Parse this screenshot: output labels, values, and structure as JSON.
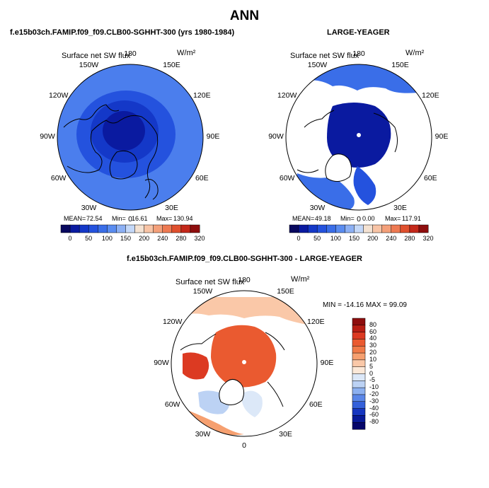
{
  "title": "ANN",
  "left_panel": {
    "subtitle": "f.e15b03ch.FAMIP.f09_f09.CLB00-SGHHT-300 (yrs 1980-1984)",
    "plot_title": "Surface net SW flux",
    "units": "W/m²",
    "mean_label": "MEAN=",
    "mean": "72.54",
    "min_label": "Min=",
    "min": "16.61",
    "max_label": "Max=",
    "max": "130.94"
  },
  "right_panel": {
    "subtitle": "LARGE-YEAGER",
    "plot_title": "Surface net SW flux",
    "units": "W/m²",
    "mean_label": "MEAN=",
    "mean": "49.18",
    "min_label": "Min=",
    "min": "0.00",
    "max_label": "Max=",
    "max": "117.91"
  },
  "diff_panel": {
    "subtitle": "f.e15b03ch.FAMIP.f09_f09.CLB00-SGHHT-300 - LARGE-YEAGER",
    "plot_title": "Surface net SW flux",
    "units": "W/m²",
    "minmax_text": "MIN = -14.16 MAX =  99.09"
  },
  "lon_labels": [
    "180",
    "150E",
    "120E",
    "90E",
    "60E",
    "30E",
    "0",
    "30W",
    "60W",
    "90W",
    "120W",
    "150W"
  ],
  "colorbar_ticks": [
    "0",
    "50",
    "100",
    "150",
    "200",
    "240",
    "280",
    "320"
  ],
  "diff_colorbar_ticks": [
    "80",
    "60",
    "40",
    "30",
    "20",
    "10",
    "5",
    "0",
    "-5",
    "-10",
    "-20",
    "-30",
    "-40",
    "-60",
    "-80"
  ],
  "colors": {
    "abs_scale": [
      "#08085e",
      "#0a1aa0",
      "#1438c8",
      "#2452de",
      "#3a6ee8",
      "#5a8cf0",
      "#8cb0f4",
      "#c4d8f8",
      "#f4e2d2",
      "#f8c4a6",
      "#f4a07a",
      "#ee7a52",
      "#e0502e",
      "#c4281a",
      "#8e0e0e"
    ],
    "diff_scale": [
      "#8e0e0e",
      "#b81e14",
      "#dc3a22",
      "#ea5a30",
      "#f07a48",
      "#f6a070",
      "#fac8a8",
      "#fbe8d8",
      "#dce8f8",
      "#bcd2f4",
      "#8cb0f0",
      "#5a86e8",
      "#3460da",
      "#1636c0",
      "#081a98",
      "#06066a"
    ]
  },
  "chart_data": [
    {
      "type": "heatmap",
      "projection": "north polar stereographic",
      "title": "Surface net SW flux",
      "subtitle": "f.e15b03ch.FAMIP.f09_f09.CLB00-SGHHT-300 (yrs 1980-1984)",
      "units": "W/m2",
      "mean": 72.54,
      "min": 16.61,
      "max": 130.94,
      "colorbar_levels": [
        0,
        50,
        100,
        150,
        200,
        240,
        280,
        320
      ]
    },
    {
      "type": "heatmap",
      "projection": "north polar stereographic",
      "title": "Surface net SW flux",
      "subtitle": "LARGE-YEAGER",
      "units": "W/m2",
      "mean": 49.18,
      "min": 0.0,
      "max": 117.91,
      "colorbar_levels": [
        0,
        50,
        100,
        150,
        200,
        240,
        280,
        320
      ]
    },
    {
      "type": "heatmap",
      "projection": "north polar stereographic",
      "title": "Surface net SW flux",
      "subtitle": "f.e15b03ch.FAMIP.f09_f09.CLB00-SGHHT-300 - LARGE-YEAGER",
      "units": "W/m2",
      "min": -14.16,
      "max": 99.09,
      "colorbar_levels": [
        80,
        60,
        40,
        30,
        20,
        10,
        5,
        0,
        -5,
        -10,
        -20,
        -30,
        -40,
        -60,
        -80
      ]
    }
  ]
}
